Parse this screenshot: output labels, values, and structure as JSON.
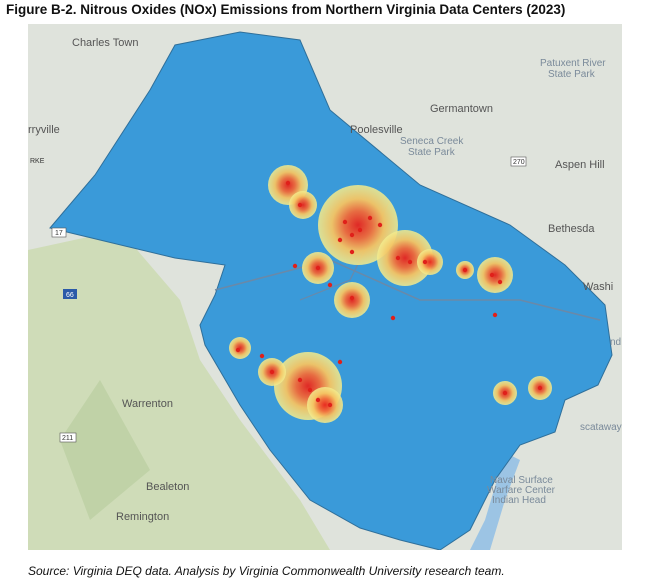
{
  "title": "Figure B-2. Nitrous Oxides (NOx) Emissions from Northern Virginia Data Centers (2023)",
  "source": "Source: Virginia DEQ data. Analysis by Virginia Commonwealth University research team.",
  "map": {
    "labels": [
      "Charles Town",
      "Patuxent River",
      "State Park",
      "Germantown",
      "Poolesville",
      "Seneca Creek",
      "State Park",
      "Aspen Hill",
      "Bethesda",
      "Washi",
      "rryville",
      "RKE",
      "Warrenton",
      "Bealeton",
      "Remington",
      "Naval Surface",
      "Warfare Center",
      "Indian Head",
      "scataway",
      "nd"
    ],
    "shields": [
      "17",
      "66",
      "211",
      "270"
    ]
  }
}
